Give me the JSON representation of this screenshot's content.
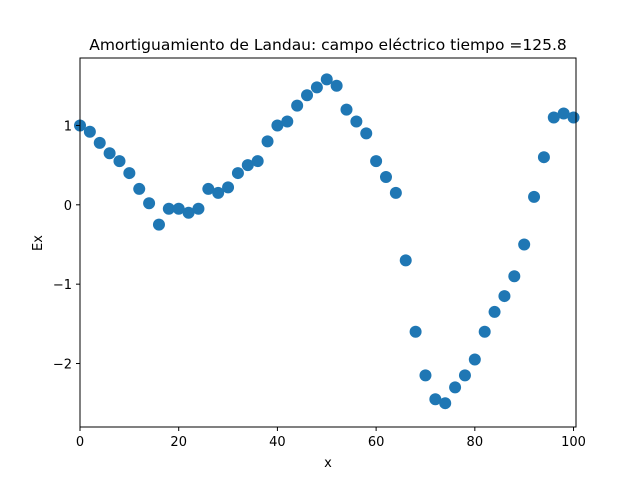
{
  "chart_data": {
    "type": "scatter",
    "title": "Amortiguamiento de Landau: campo eléctrico  tiempo =125.8",
    "xlabel": "x",
    "ylabel": "Ex",
    "xlim": [
      0,
      100.5
    ],
    "ylim": [
      -2.8,
      1.85
    ],
    "xticks": [
      0,
      20,
      40,
      60,
      80,
      100
    ],
    "yticks": [
      -2,
      -1,
      0,
      1
    ],
    "xtick_labels": [
      "0",
      "20",
      "40",
      "60",
      "80",
      "100"
    ],
    "ytick_labels": [
      "−2",
      "−1",
      "0",
      "1"
    ],
    "grid": false,
    "marker_color": "#1f77b4",
    "x": [
      0,
      2,
      4,
      6,
      8,
      10,
      12,
      14,
      16,
      18,
      20,
      22,
      24,
      26,
      28,
      30,
      32,
      34,
      36,
      38,
      40,
      42,
      44,
      46,
      48,
      50,
      52,
      54,
      56,
      58,
      60,
      62,
      64,
      66,
      68,
      70,
      72,
      74,
      76,
      78,
      80,
      82,
      84,
      86,
      88,
      90,
      92,
      94,
      96,
      98,
      100
    ],
    "y": [
      1.0,
      0.92,
      0.78,
      0.65,
      0.55,
      0.4,
      0.2,
      0.02,
      -0.25,
      -0.05,
      -0.05,
      -0.1,
      -0.05,
      0.2,
      0.15,
      0.22,
      0.4,
      0.5,
      0.55,
      0.8,
      1.0,
      1.05,
      1.25,
      1.38,
      1.48,
      1.58,
      1.5,
      1.2,
      1.05,
      0.9,
      0.55,
      0.35,
      0.15,
      -0.7,
      -1.6,
      -2.15,
      -2.45,
      -2.5,
      -2.3,
      -2.15,
      -1.95,
      -1.6,
      -1.35,
      -1.15,
      -0.9,
      -0.5,
      0.1,
      0.6,
      1.1,
      1.15,
      1.1
    ]
  }
}
